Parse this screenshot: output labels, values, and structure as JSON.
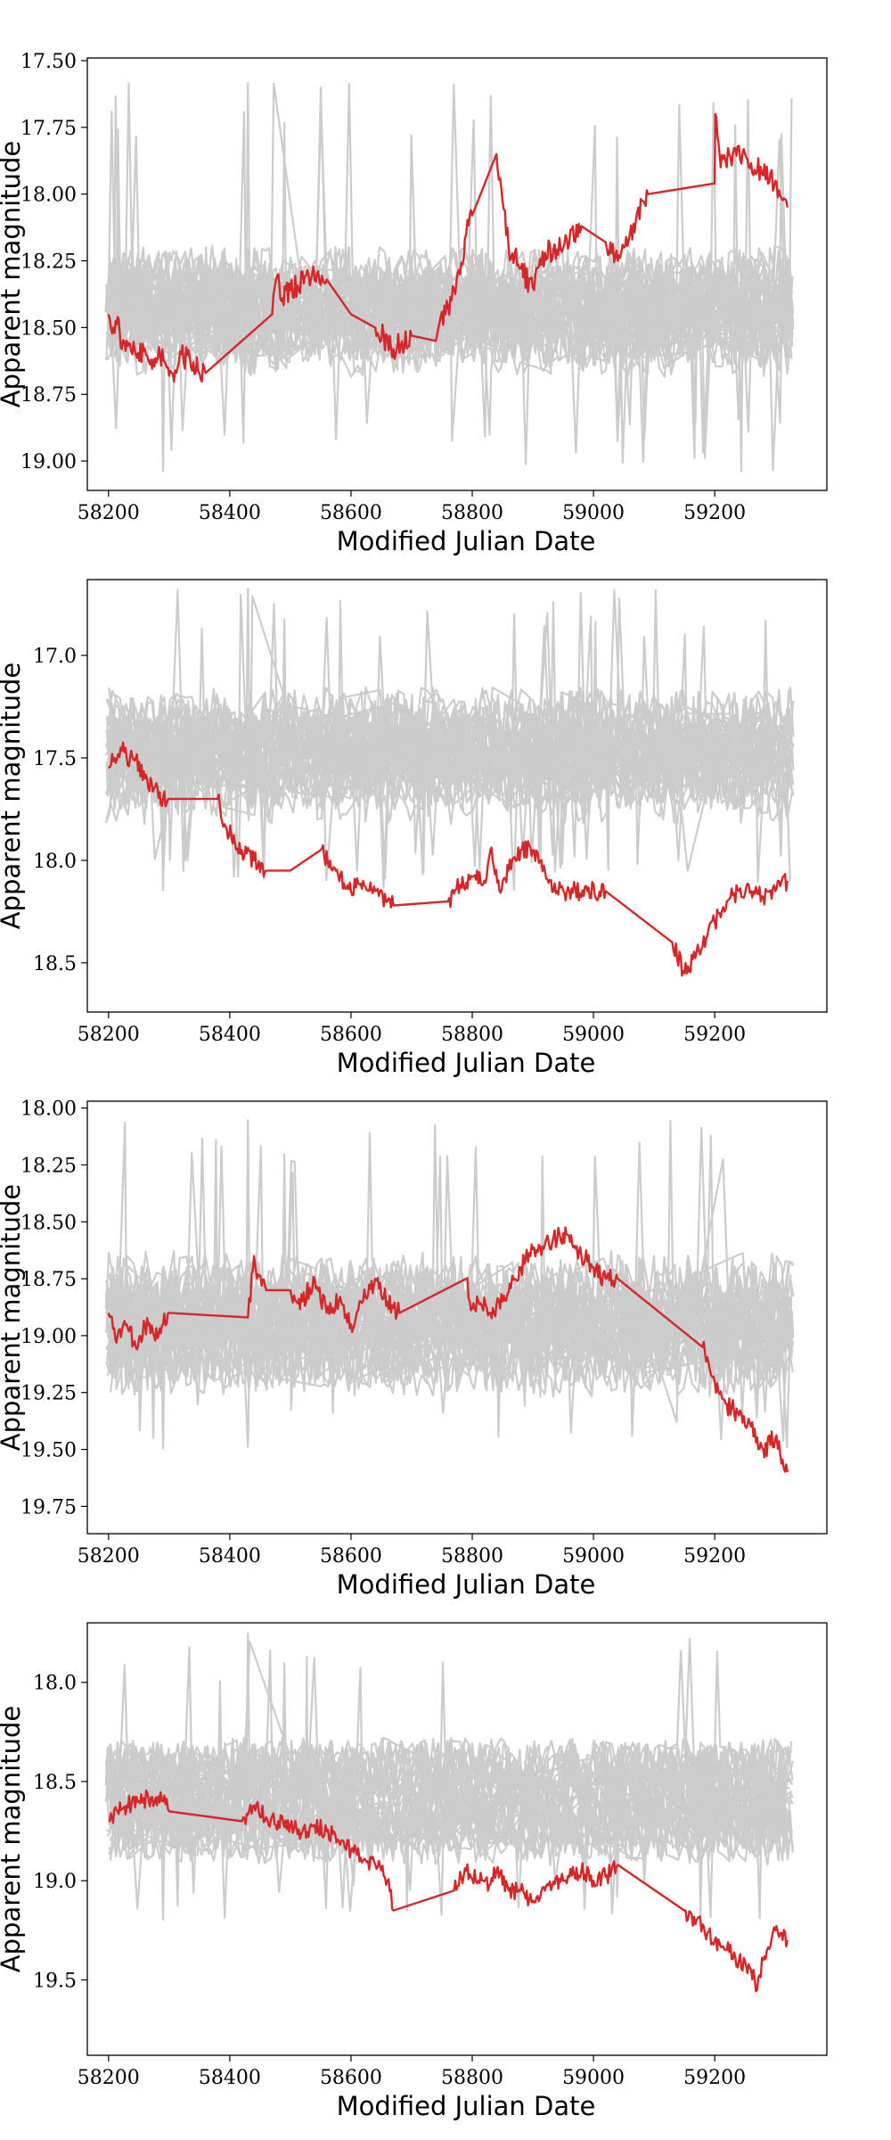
{
  "figure": {
    "background": "#ffffff"
  },
  "chart_data": [
    {
      "type": "line",
      "xlabel": "Modified Julian Date",
      "ylabel": "Apparent magnitude",
      "xlim": [
        58165,
        59385
      ],
      "ylim": [
        19.11,
        17.49
      ],
      "y_inverted": true,
      "xticks": [
        "58200",
        "58400",
        "58600",
        "58800",
        "59000",
        "59200"
      ],
      "yticks": [
        "17.50",
        "17.75",
        "18.00",
        "18.25",
        "18.50",
        "18.75",
        "19.00"
      ],
      "grid": false,
      "background_band": {
        "color": "#cccccc",
        "center": 18.45,
        "spread": 0.13,
        "spike_high": 17.58,
        "spike_low": 19.04
      },
      "series": [
        {
          "color": "#d62728",
          "x": [
            58200,
            58210,
            58215,
            58222,
            58230,
            58245,
            58260,
            58270,
            58285,
            58300,
            58310,
            58320,
            58340,
            58360,
            58470,
            58480,
            58485,
            58500,
            58530,
            58560,
            58600,
            58640,
            58670,
            58700,
            58740,
            58760,
            58780,
            58790,
            58800,
            58840,
            58860,
            58880,
            58900,
            58920,
            58950,
            58980,
            59020,
            59040,
            59050,
            59060,
            59090,
            59200,
            59201,
            59210,
            59230,
            59250,
            59280,
            59300,
            59320
          ],
          "y": [
            18.45,
            18.52,
            18.46,
            18.58,
            18.55,
            18.6,
            18.58,
            18.62,
            18.6,
            18.68,
            18.66,
            18.6,
            18.63,
            18.67,
            18.45,
            18.3,
            18.4,
            18.36,
            18.3,
            18.32,
            18.45,
            18.5,
            18.58,
            18.53,
            18.55,
            18.42,
            18.3,
            18.15,
            18.08,
            17.85,
            18.2,
            18.28,
            18.35,
            18.22,
            18.2,
            18.12,
            18.18,
            18.25,
            18.2,
            18.15,
            18.0,
            17.96,
            17.7,
            17.9,
            17.85,
            17.85,
            17.93,
            17.95,
            18.05
          ]
        }
      ]
    },
    {
      "type": "line",
      "xlabel": "Modified Julian Date",
      "ylabel": "Apparent magnitude",
      "xlim": [
        58165,
        59385
      ],
      "ylim": [
        18.74,
        16.63
      ],
      "y_inverted": true,
      "xticks": [
        "58200",
        "58400",
        "58600",
        "58800",
        "59000",
        "59200"
      ],
      "yticks": [
        "17.0",
        "17.5",
        "18.0",
        "18.5"
      ],
      "grid": false,
      "background_band": {
        "color": "#cccccc",
        "center": 17.5,
        "spread": 0.17,
        "spike_high": 16.67,
        "spike_low": 18.15
      },
      "series": [
        {
          "color": "#d62728",
          "x": [
            58200,
            58210,
            58220,
            58230,
            58245,
            58260,
            58275,
            58290,
            58300,
            58380,
            58395,
            58420,
            58440,
            58460,
            58500,
            58550,
            58575,
            58600,
            58620,
            58640,
            58670,
            58760,
            58780,
            58800,
            58820,
            58830,
            58845,
            58860,
            58880,
            58900,
            58920,
            58940,
            58960,
            58990,
            59020,
            59130,
            59150,
            59170,
            59200,
            59220,
            59240,
            59260,
            59280,
            59300,
            59320
          ],
          "y": [
            17.55,
            17.5,
            17.45,
            17.5,
            17.5,
            17.6,
            17.65,
            17.7,
            17.7,
            17.7,
            17.85,
            17.95,
            18.0,
            18.05,
            18.05,
            17.95,
            18.05,
            18.15,
            18.1,
            18.15,
            18.22,
            18.2,
            18.12,
            18.08,
            18.1,
            17.95,
            18.15,
            18.05,
            17.95,
            17.95,
            18.05,
            18.15,
            18.15,
            18.15,
            18.15,
            18.4,
            18.55,
            18.45,
            18.3,
            18.2,
            18.15,
            18.15,
            18.18,
            18.15,
            18.1
          ]
        }
      ]
    },
    {
      "type": "line",
      "xlabel": "Modified Julian Date",
      "ylabel": "Apparent magnitude",
      "xlim": [
        58165,
        59385
      ],
      "ylim": [
        19.87,
        17.97
      ],
      "y_inverted": true,
      "xticks": [
        "58200",
        "58400",
        "58600",
        "58800",
        "59000",
        "59200"
      ],
      "yticks": [
        "18.00",
        "18.25",
        "18.50",
        "18.75",
        "19.00",
        "19.25",
        "19.50",
        "19.75"
      ],
      "grid": false,
      "background_band": {
        "color": "#cccccc",
        "center": 18.95,
        "spread": 0.16,
        "spike_high": 18.05,
        "spike_low": 19.5
      },
      "series": [
        {
          "color": "#d62728",
          "x": [
            58200,
            58215,
            58230,
            58245,
            58260,
            58275,
            58290,
            58300,
            58430,
            58440,
            58445,
            58460,
            58500,
            58520,
            58540,
            58560,
            58580,
            58600,
            58620,
            58640,
            58660,
            58680,
            58790,
            58800,
            58810,
            58830,
            58850,
            58870,
            58880,
            58900,
            58920,
            58950,
            58965,
            58980,
            59000,
            59020,
            59040,
            59180,
            59200,
            59220,
            59240,
            59260,
            59280,
            59300,
            59320
          ],
          "y": [
            18.9,
            19.0,
            18.95,
            19.05,
            18.95,
            19.0,
            18.95,
            18.9,
            18.92,
            18.65,
            18.75,
            18.8,
            18.8,
            18.85,
            18.75,
            18.9,
            18.85,
            18.95,
            18.85,
            18.75,
            18.85,
            18.9,
            18.75,
            18.88,
            18.85,
            18.9,
            18.85,
            18.75,
            18.7,
            18.62,
            18.6,
            18.55,
            18.6,
            18.65,
            18.7,
            18.75,
            18.75,
            19.05,
            19.2,
            19.3,
            19.35,
            19.4,
            19.5,
            19.45,
            19.6
          ]
        }
      ]
    },
    {
      "type": "line",
      "xlabel": "Modified Julian Date",
      "ylabel": "Apparent magnitude",
      "xlim": [
        58165,
        59385
      ],
      "ylim": [
        19.88,
        17.7
      ],
      "y_inverted": true,
      "xticks": [
        "58200",
        "58400",
        "58600",
        "58800",
        "59000",
        "59200"
      ],
      "yticks": [
        "18.0",
        "18.5",
        "19.0",
        "19.5"
      ],
      "grid": false,
      "background_band": {
        "color": "#cccccc",
        "center": 18.6,
        "spread": 0.16,
        "spike_high": 17.75,
        "spike_low": 19.2
      },
      "series": [
        {
          "color": "#d62728",
          "x": [
            58200,
            58215,
            58230,
            58250,
            58270,
            58290,
            58300,
            58420,
            58440,
            58460,
            58480,
            58500,
            58520,
            58540,
            58560,
            58580,
            58600,
            58620,
            58640,
            58660,
            58670,
            58770,
            58790,
            58810,
            58830,
            58840,
            58860,
            58880,
            58900,
            58920,
            58950,
            58980,
            59000,
            59020,
            59040,
            59150,
            59170,
            59200,
            59220,
            59240,
            59260,
            59270,
            59280,
            59300,
            59320
          ],
          "y": [
            18.7,
            18.65,
            18.62,
            18.6,
            18.58,
            18.6,
            18.65,
            18.7,
            18.62,
            18.68,
            18.7,
            18.72,
            18.75,
            18.72,
            18.75,
            18.8,
            18.85,
            18.9,
            18.92,
            19.0,
            19.15,
            19.05,
            18.95,
            19.0,
            19.02,
            18.95,
            19.05,
            19.05,
            19.1,
            19.05,
            19.0,
            18.95,
            19.0,
            18.98,
            18.92,
            19.15,
            19.2,
            19.3,
            19.35,
            19.4,
            19.45,
            19.55,
            19.4,
            19.25,
            19.3
          ]
        }
      ]
    }
  ]
}
